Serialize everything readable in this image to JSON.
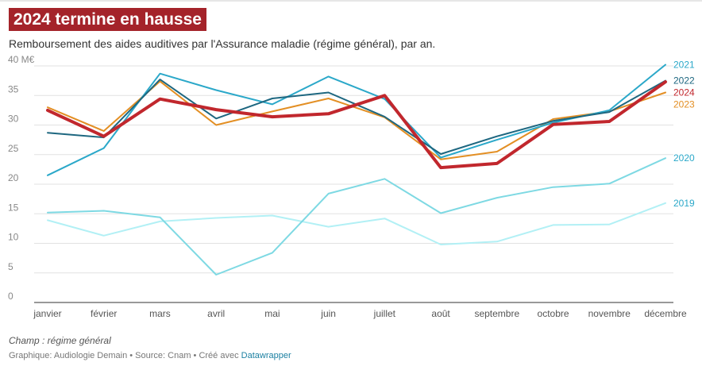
{
  "header": {
    "title": "2024 termine en hausse",
    "subtitle": "Remboursement des aides auditives par l'Assurance maladie (régime général), par an."
  },
  "footer": {
    "note": "Champ : régime général",
    "credits_prefix": "Graphique: Audiologie Demain • Source: Cnam • Créé avec ",
    "credits_link": "Datawrapper"
  },
  "chart_data": {
    "type": "line",
    "title": "2024 termine en hausse",
    "subtitle": "Remboursement des aides auditives par l'Assurance maladie (régime général), par an.",
    "xlabel": "",
    "ylabel": "",
    "ylim": [
      0,
      40
    ],
    "y_ticks": [
      0,
      5,
      10,
      15,
      20,
      25,
      30,
      35,
      40
    ],
    "y_tick_labels": [
      "0",
      "5",
      "10",
      "15",
      "20",
      "25",
      "30",
      "35",
      "40 M€"
    ],
    "grid": true,
    "legend": "right, labels at line ends",
    "categories": [
      "janvier",
      "février",
      "mars",
      "avril",
      "mai",
      "juin",
      "juillet",
      "août",
      "septembre",
      "octobre",
      "novembre",
      "décembre"
    ],
    "series": [
      {
        "name": "2019",
        "color": "#b2f0f5",
        "width": 2,
        "values": [
          13.9,
          11.3,
          13.7,
          14.3,
          14.7,
          12.8,
          14.2,
          9.8,
          10.3,
          13.1,
          13.2,
          16.8
        ]
      },
      {
        "name": "2020",
        "color": "#7ed9e3",
        "width": 2,
        "values": [
          15.2,
          15.5,
          14.4,
          4.7,
          8.4,
          18.4,
          20.9,
          15.1,
          17.7,
          19.5,
          20.1,
          24.4
        ]
      },
      {
        "name": "2023",
        "color": "#e38f24",
        "width": 2,
        "values": [
          33.0,
          29.0,
          37.4,
          30.0,
          32.3,
          34.5,
          31.3,
          24.2,
          25.5,
          31.0,
          32.3,
          35.5
        ]
      },
      {
        "name": "2021",
        "color": "#2ba8c9",
        "width": 2,
        "values": [
          21.5,
          26.1,
          38.7,
          35.9,
          33.5,
          38.2,
          34.4,
          24.5,
          27.5,
          30.4,
          32.5,
          40.2
        ]
      },
      {
        "name": "2022",
        "color": "#1e6780",
        "width": 2,
        "values": [
          28.7,
          27.9,
          37.7,
          31.1,
          34.5,
          35.5,
          31.4,
          25.1,
          28.1,
          30.7,
          32.2,
          37.5
        ]
      },
      {
        "name": "2024",
        "color": "#c1272d",
        "width": 4,
        "values": [
          32.5,
          28.1,
          34.4,
          32.6,
          31.4,
          31.9,
          35.0,
          22.8,
          23.5,
          30.1,
          30.6,
          37.3
        ]
      }
    ],
    "end_labels": [
      {
        "name": "2021",
        "color": "#2ba8c9"
      },
      {
        "name": "2022",
        "color": "#1e6780"
      },
      {
        "name": "2024",
        "color": "#c1272d"
      },
      {
        "name": "2023",
        "color": "#e38f24"
      },
      {
        "name": "2020",
        "color": "#2ba8c9"
      },
      {
        "name": "2019",
        "color": "#2ba8c9"
      }
    ]
  }
}
